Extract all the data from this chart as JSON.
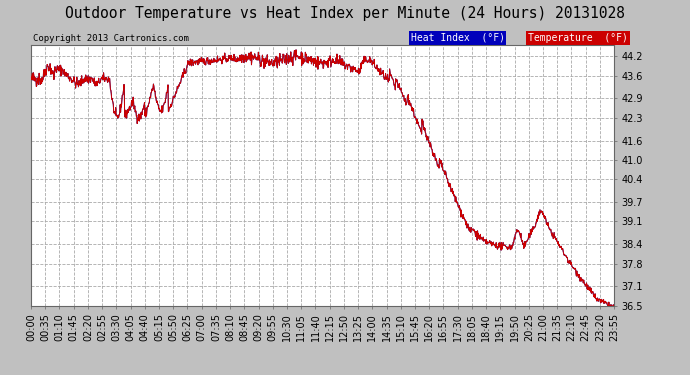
{
  "title": "Outdoor Temperature vs Heat Index per Minute (24 Hours) 20131028",
  "copyright": "Copyright 2013 Cartronics.com",
  "ylim": [
    36.5,
    44.55
  ],
  "yticks": [
    36.5,
    37.1,
    37.8,
    38.4,
    39.1,
    39.7,
    40.4,
    41.0,
    41.6,
    42.3,
    42.9,
    43.6,
    44.2
  ],
  "bg_color": "#c0c0c0",
  "plot_bg_color": "#ffffff",
  "grid_color": "#aaaaaa",
  "line_color": "#cc0000",
  "heat_index_color": "#000099",
  "legend_heat_bg": "#0000cc",
  "legend_temp_bg": "#cc0000",
  "title_fontsize": 11,
  "tick_fontsize": 7,
  "xtick_labels": [
    "00:00",
    "00:35",
    "01:10",
    "01:45",
    "02:20",
    "02:55",
    "03:30",
    "04:05",
    "04:40",
    "05:15",
    "05:50",
    "06:25",
    "07:00",
    "07:35",
    "08:10",
    "08:45",
    "09:20",
    "09:55",
    "10:30",
    "11:05",
    "11:40",
    "12:15",
    "12:50",
    "13:25",
    "14:00",
    "14:35",
    "15:10",
    "15:45",
    "16:20",
    "16:55",
    "17:30",
    "18:05",
    "18:40",
    "19:15",
    "19:50",
    "20:25",
    "21:00",
    "21:35",
    "22:10",
    "22:45",
    "23:20",
    "23:55"
  ],
  "n_xticks": 42
}
